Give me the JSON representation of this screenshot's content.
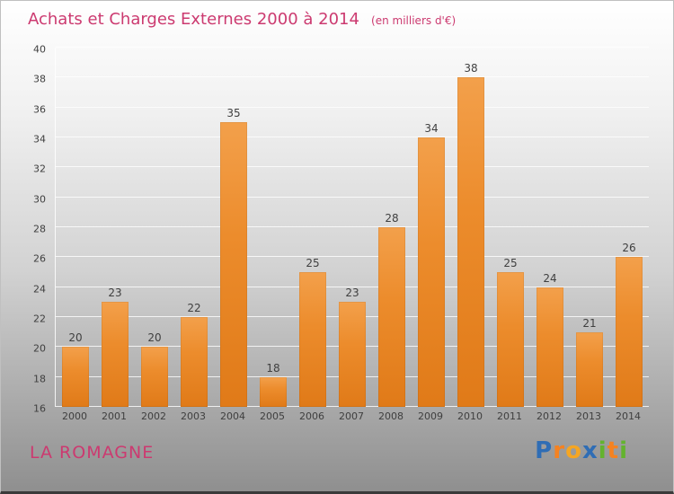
{
  "chart_data": {
    "type": "bar",
    "title": "Achats et Charges Externes 2000 à 2014",
    "subtitle": "(en milliers d'€)",
    "categories": [
      "2000",
      "2001",
      "2002",
      "2003",
      "2004",
      "2005",
      "2006",
      "2007",
      "2008",
      "2009",
      "2010",
      "2011",
      "2012",
      "2013",
      "2014"
    ],
    "values": [
      20,
      23,
      20,
      22,
      35,
      18,
      25,
      23,
      28,
      34,
      38,
      25,
      24,
      21,
      26
    ],
    "xlabel": "",
    "ylabel": "",
    "ylim": [
      16,
      40
    ],
    "ytick_step": 2,
    "grid": true,
    "legend": "none",
    "bar_color_top": "#f3a04b",
    "bar_color_bottom": "#e07a18",
    "title_color": "#cc3a70",
    "tick_color": "#3f3f3f"
  },
  "footer": {
    "company": "LA ROMAGNE",
    "logo_letters": [
      {
        "ch": "P",
        "color": "#2f6db5"
      },
      {
        "ch": "r",
        "color": "#f58220"
      },
      {
        "ch": "o",
        "color": "#f5a623"
      },
      {
        "ch": "x",
        "color": "#2f6db5"
      },
      {
        "ch": "i",
        "color": "#63b32e"
      },
      {
        "ch": "t",
        "color": "#f58220"
      },
      {
        "ch": "i",
        "color": "#63b32e"
      }
    ]
  }
}
